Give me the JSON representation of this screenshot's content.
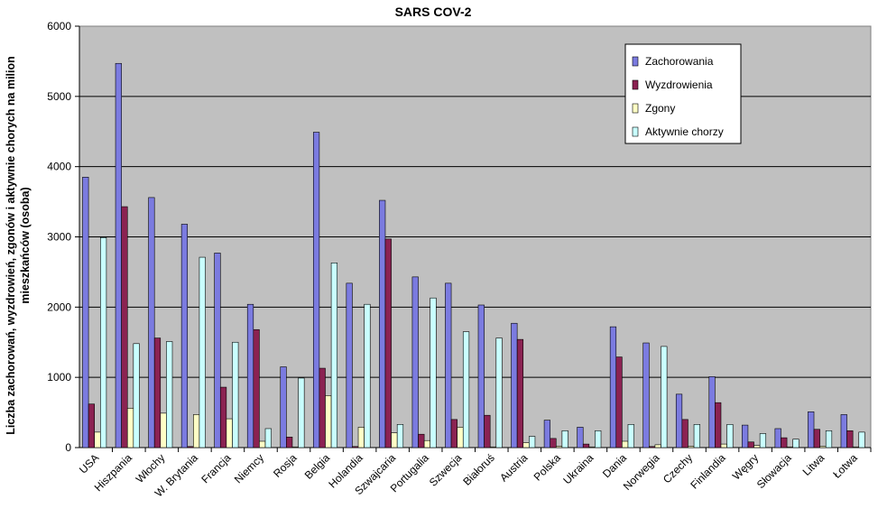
{
  "chart_data": {
    "type": "bar",
    "title": "SARS COV-2",
    "xlabel": "",
    "ylabel_lines": [
      "Liczba zachorowań, wyzdrowień, zgonów i aktywnie chorych na milion",
      "mieszkańców (osoba)"
    ],
    "ylim": [
      0,
      6000
    ],
    "yticks": [
      0,
      1000,
      2000,
      3000,
      4000,
      5000,
      6000
    ],
    "grid": true,
    "legend_position": "top-right",
    "categories": [
      "USA",
      "Hiszpania",
      "Włochy",
      "W. Brytania",
      "Francja",
      "Niemcy",
      "Rosja",
      "Belgia",
      "Holandia",
      "Szwajcaria",
      "Portugalia",
      "Szwecja",
      "Białoruś",
      "Austria",
      "Polska",
      "Ukraina",
      "Dania",
      "Norwegia",
      "Czechy",
      "Finlandia",
      "Węgry",
      "Słowacja",
      "Litwa",
      "Łotwa"
    ],
    "series": [
      {
        "name": "Zachorowania",
        "color": "#7b7be0",
        "values": [
          3850,
          5470,
          3560,
          3180,
          2770,
          2040,
          1150,
          4490,
          2340,
          3520,
          2430,
          2340,
          2030,
          1770,
          390,
          290,
          1720,
          1490,
          760,
          1010,
          320,
          270,
          510,
          470
        ]
      },
      {
        "name": "Wyzdrowienia",
        "color": "#8b2252",
        "values": [
          620,
          3430,
          1560,
          15,
          860,
          1680,
          150,
          1130,
          15,
          2970,
          190,
          400,
          460,
          1540,
          130,
          50,
          1290,
          15,
          400,
          640,
          80,
          140,
          260,
          240
        ]
      },
      {
        "name": "Zgony",
        "color": "#ffffc6",
        "values": [
          220,
          560,
          490,
          470,
          410,
          90,
          10,
          740,
          290,
          210,
          100,
          290,
          10,
          70,
          20,
          10,
          90,
          40,
          20,
          50,
          30,
          10,
          20,
          10
        ]
      },
      {
        "name": "Aktywnie chorzy",
        "color": "#c9ffff",
        "values": [
          2990,
          1480,
          1510,
          2710,
          1500,
          270,
          990,
          2630,
          2040,
          330,
          2130,
          1650,
          1560,
          160,
          240,
          240,
          330,
          1440,
          330,
          330,
          200,
          120,
          240,
          220
        ]
      }
    ]
  },
  "colors": {
    "plot_background": "#c0c0c0",
    "grid": "#000000",
    "page_background": "#ffffff"
  }
}
